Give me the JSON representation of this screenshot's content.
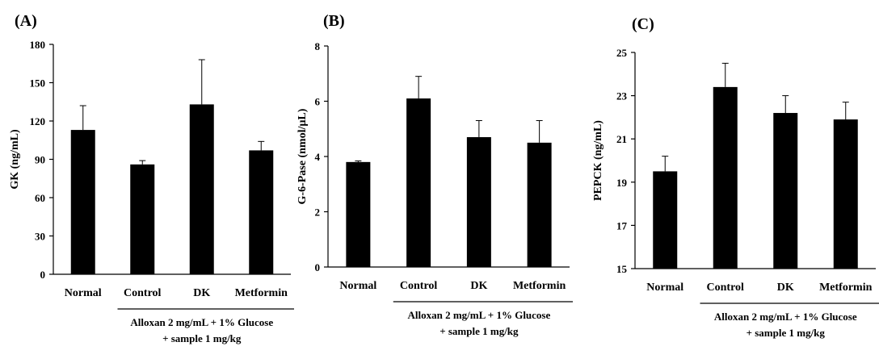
{
  "chart_data": [
    {
      "type": "bar",
      "panel_label": "(A)",
      "ylabel": "GK (ng/mL)",
      "categories": [
        "Normal",
        "Control",
        "DK",
        "Metformin"
      ],
      "values": [
        113,
        86,
        133,
        97
      ],
      "errors": [
        19,
        3,
        35,
        7
      ],
      "ylim": [
        0,
        180
      ],
      "yticks": [
        "0",
        "30",
        "60",
        "90",
        "120",
        "150",
        "180"
      ],
      "group_note": [
        "Alloxan 2 mg/mL + 1% Glucose",
        "+ sample 1 mg/kg"
      ],
      "bar_color": "#000000"
    },
    {
      "type": "bar",
      "panel_label": "(B)",
      "ylabel": "G-6-Pase (nmol/µL)",
      "categories": [
        "Normal",
        "Control",
        "DK",
        "Metformin"
      ],
      "values": [
        3.8,
        6.1,
        4.7,
        4.5
      ],
      "errors": [
        0.04,
        0.8,
        0.6,
        0.8
      ],
      "ylim": [
        0,
        8
      ],
      "yticks": [
        "0",
        "2",
        "4",
        "6",
        "8"
      ],
      "group_note": [
        "Alloxan 2 mg/mL + 1% Glucose",
        "+ sample 1 mg/kg"
      ],
      "bar_color": "#000000"
    },
    {
      "type": "bar",
      "panel_label": "(C)",
      "ylabel": "PEPCK (ng/mL)",
      "categories": [
        "Normal",
        "Control",
        "DK",
        "Metformin"
      ],
      "values": [
        19.5,
        23.4,
        22.2,
        21.9
      ],
      "errors": [
        0.7,
        1.1,
        0.8,
        0.8
      ],
      "ylim": [
        15,
        25
      ],
      "yticks": [
        "15",
        "17",
        "19",
        "21",
        "23",
        "25"
      ],
      "group_note": [
        "Alloxan 2 mg/mL + 1% Glucose",
        "+ sample 1 mg/kg"
      ],
      "bar_color": "#000000"
    }
  ]
}
